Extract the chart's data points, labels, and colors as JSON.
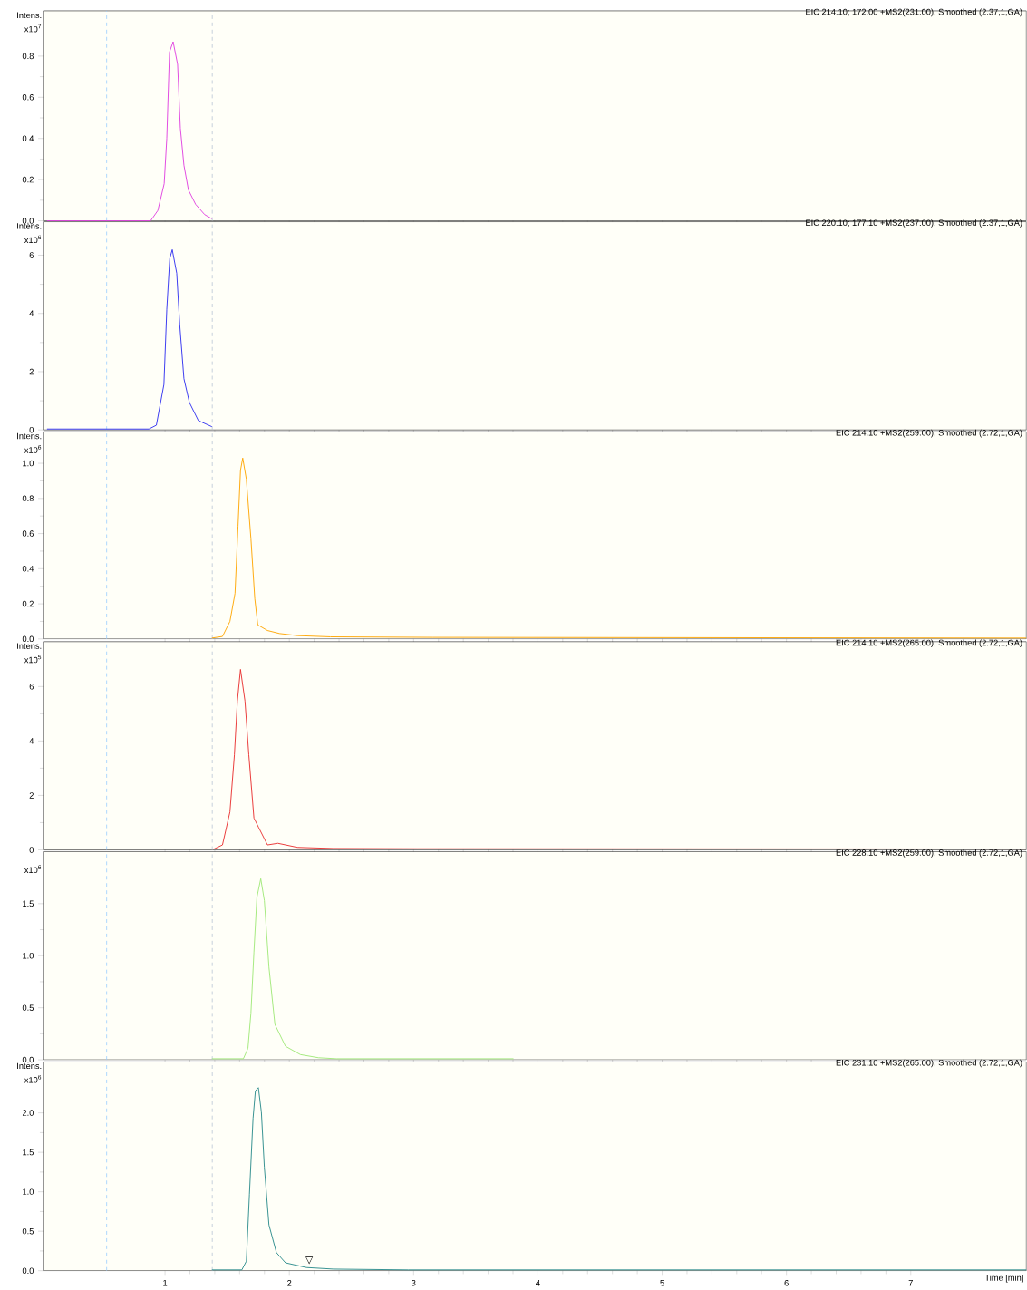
{
  "chart_data": [
    {
      "type": "line",
      "title": "EIC 214.10; 172.00 +MS2(231.00), Smoothed (2.37,1,GA)",
      "ylabel": "Intens.",
      "annotations": [
        "x10$^{7}$"
      ],
      "tick_labels": "y",
      "color": "#e040e0",
      "x": [
        0.05,
        0.884,
        0.942,
        0.993,
        1.014,
        1.036,
        1.065,
        1.101,
        1.123,
        1.152,
        1.188,
        1.246,
        1.319,
        1.377
      ],
      "values": [
        0,
        0,
        0.05,
        0.18,
        0.4,
        0.82,
        0.87,
        0.76,
        0.45,
        0.27,
        0.15,
        0.08,
        0.03,
        0.01
      ],
      "xlim": [
        0.02,
        7.93
      ],
      "xticks": [
        1,
        2,
        3,
        4,
        5,
        6,
        7
      ],
      "ylim": [
        0,
        1.02
      ],
      "yticks": [
        {
          "value": 0,
          "label": "0.0"
        },
        0.2,
        0.4,
        0.6,
        0.8
      ],
      "ref_lines": [
        {
          "axis": "x",
          "value": 0.53,
          "color": "#99ccff",
          "line_style": "dashed"
        },
        {
          "axis": "x",
          "value": 1.38,
          "color": "#b8c4d4",
          "line_style": "dashed"
        }
      ]
    },
    {
      "type": "line",
      "title": "EIC 220.10; 177.10 +MS2(237.00), Smoothed (2.37,1,GA)",
      "ylabel": "Intens.",
      "annotations": [
        "x10$^{6}$"
      ],
      "tick_labels": "y",
      "color": "#3030f0",
      "x": [
        0.05,
        0.87,
        0.93,
        0.991,
        1.014,
        1.038,
        1.058,
        1.094,
        1.118,
        1.152,
        1.196,
        1.268,
        1.377
      ],
      "values": [
        0.03,
        0.03,
        0.16,
        1.56,
        4.14,
        5.89,
        6.19,
        5.38,
        3.62,
        1.76,
        0.94,
        0.32,
        0.11
      ],
      "xlim": [
        0.02,
        7.93
      ],
      "xticks": [
        1,
        2,
        3,
        4,
        5,
        6,
        7
      ],
      "ylim": [
        0,
        7.15
      ],
      "yticks": [
        0,
        2,
        4,
        6
      ],
      "ref_lines": [
        {
          "axis": "x",
          "value": 0.53,
          "color": "#99ccff",
          "line_style": "dashed"
        },
        {
          "axis": "x",
          "value": 1.38,
          "color": "#b8c4d4",
          "line_style": "dashed"
        }
      ]
    },
    {
      "type": "line",
      "title": "EIC 214.10 +MS2(259.00), Smoothed (2.72,1,GA)",
      "ylabel": "Intens.",
      "annotations": [
        "x10$^{6}$"
      ],
      "tick_labels": "y",
      "color": "#ffa500",
      "x": [
        1.377,
        1.462,
        1.522,
        1.563,
        1.587,
        1.607,
        1.625,
        1.654,
        1.691,
        1.722,
        1.746,
        1.824,
        1.92,
        2.065,
        2.331,
        3.152,
        7.93
      ],
      "values": [
        0.005,
        0.014,
        0.1,
        0.26,
        0.64,
        0.96,
        1.03,
        0.91,
        0.57,
        0.23,
        0.08,
        0.048,
        0.031,
        0.019,
        0.012,
        0.009,
        0.005
      ],
      "xlim": [
        0.02,
        7.93
      ],
      "xticks": [
        1,
        2,
        3,
        4,
        5,
        6,
        7
      ],
      "ylim": [
        0,
        1.18
      ],
      "yticks": [
        {
          "value": 0,
          "label": "0.0"
        },
        0.2,
        0.4,
        0.6,
        0.8,
        {
          "value": 1,
          "label": "1.0"
        }
      ],
      "ref_lines": [
        {
          "axis": "x",
          "value": 0.53,
          "color": "#99ccff",
          "line_style": "dashed"
        },
        {
          "axis": "x",
          "value": 1.38,
          "color": "#b8c4d4",
          "line_style": "dashed"
        }
      ]
    },
    {
      "type": "line",
      "title": "EIC 214.10 +MS2(265.00), Smoothed (2.72,1,GA)",
      "ylabel": "Intens.",
      "annotations": [
        "x10$^{5}$"
      ],
      "tick_labels": "y",
      "color": "#e83030",
      "x": [
        1.389,
        1.462,
        1.522,
        1.558,
        1.582,
        1.607,
        1.643,
        1.674,
        1.715,
        1.751,
        1.824,
        1.908,
        2.065,
        2.355,
        3.031,
        7.93
      ],
      "values": [
        0.02,
        0.18,
        1.39,
        3.49,
        5.47,
        6.63,
        5.47,
        3.49,
        1.17,
        0.84,
        0.18,
        0.24,
        0.09,
        0.05,
        0.04,
        0.03
      ],
      "xlim": [
        0.02,
        7.93
      ],
      "xticks": [
        1,
        2,
        3,
        4,
        5,
        6,
        7
      ],
      "ylim": [
        0,
        7.65
      ],
      "yticks": [
        0,
        2,
        4,
        6
      ],
      "ref_lines": [
        {
          "axis": "x",
          "value": 0.53,
          "color": "#99ccff",
          "line_style": "dashed"
        },
        {
          "axis": "x",
          "value": 1.38,
          "color": "#b8c4d4",
          "line_style": "dashed"
        }
      ]
    },
    {
      "type": "line",
      "title": "EIC 228.10 +MS2(259.00), Smoothed (2.72,1,GA)",
      "annotations": [
        "x10$^{6}$"
      ],
      "tick_labels": "y",
      "color": "#a0e878",
      "x": [
        1.377,
        1.63,
        1.667,
        1.691,
        1.715,
        1.739,
        1.77,
        1.799,
        1.836,
        1.884,
        1.969,
        2.089,
        2.234,
        2.379,
        3.804
      ],
      "values": [
        0.01,
        0.01,
        0.11,
        0.45,
        1.03,
        1.56,
        1.74,
        1.53,
        0.89,
        0.34,
        0.13,
        0.05,
        0.02,
        0.01,
        0.01
      ],
      "xlim": [
        0.02,
        7.93
      ],
      "xticks": [
        1,
        2,
        3,
        4,
        5,
        6,
        7
      ],
      "ylim": [
        0,
        2.0
      ],
      "yticks": [
        {
          "value": 0,
          "label": "0.0"
        },
        0.5,
        {
          "value": 1,
          "label": "1.0"
        },
        1.5
      ],
      "ref_lines": [
        {
          "axis": "x",
          "value": 0.53,
          "color": "#99ccff",
          "line_style": "dashed"
        },
        {
          "axis": "x",
          "value": 1.38,
          "color": "#b8c4d4",
          "line_style": "dashed"
        }
      ]
    },
    {
      "type": "line",
      "title": "EIC 231.10 +MS2(265.00), Smoothed (2.72,1,GA)",
      "ylabel": "Intens.",
      "xlabel": "Time [min]",
      "annotations": [
        "x10$^{6}$",
        {
          "text": "▽",
          "x": 2.16,
          "y": 0.08
        }
      ],
      "color": "#2a8a8a",
      "x": [
        1.377,
        1.618,
        1.654,
        1.679,
        1.708,
        1.727,
        1.751,
        1.775,
        1.799,
        1.836,
        1.896,
        1.969,
        2.138,
        2.355,
        2.959,
        7.93
      ],
      "values": [
        0.01,
        0.01,
        0.12,
        0.97,
        1.93,
        2.28,
        2.32,
        2.01,
        1.31,
        0.58,
        0.23,
        0.1,
        0.04,
        0.02,
        0.01,
        0.01
      ],
      "xlim": [
        0.02,
        7.93
      ],
      "xticks": [
        1,
        2,
        3,
        4,
        5,
        6,
        7
      ],
      "ylim": [
        0,
        2.65
      ],
      "yticks": [
        {
          "value": 0,
          "label": "0.0"
        },
        {
          "value": 0.5,
          "label": "0.5"
        },
        {
          "value": 1,
          "label": "1.0"
        },
        {
          "value": 1.5,
          "label": "1.5"
        },
        {
          "value": 2,
          "label": "2.0"
        }
      ],
      "ref_lines": [
        {
          "axis": "x",
          "value": 0.53,
          "color": "#99ccff",
          "line_style": "dashed"
        },
        {
          "axis": "x",
          "value": 1.38,
          "color": "#b8c4d4",
          "line_style": "dashed"
        }
      ]
    }
  ]
}
